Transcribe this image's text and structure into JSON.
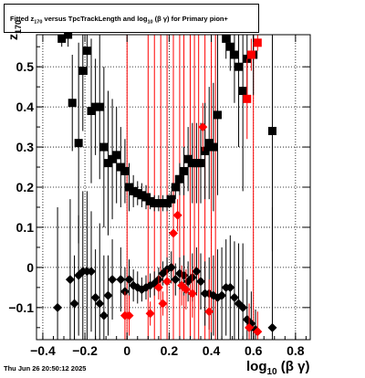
{
  "title": {
    "part1": "Fitted  z",
    "sub1": "170",
    "part2": "  versus TpcTrackLength and log",
    "sub2": "10",
    "part3": " (β  γ) for Primary pion+"
  },
  "footer": "Thu Jun 26 20:50:12 2025",
  "xlabel": {
    "main": "log",
    "sub": "10",
    "rest": " (β γ)"
  },
  "ylabel": {
    "main": "z",
    "sub": "170"
  },
  "chart_data": {
    "type": "scatter",
    "xlim": [
      -0.43,
      0.87
    ],
    "ylim": [
      -0.18,
      0.58
    ],
    "xticks": [
      -0.4,
      -0.2,
      0,
      0.2,
      0.4,
      0.6,
      0.8
    ],
    "xtick_labels": [
      "−0.4",
      "−0.2",
      "0",
      "0.2",
      "0.4",
      "0.6",
      "0.8"
    ],
    "yticks": [
      -0.1,
      0,
      0.1,
      0.2,
      0.3,
      0.4,
      0.5
    ],
    "ytick_labels": [
      "−0.1",
      "0",
      "0.1",
      "0.2",
      "0.3",
      "0.4",
      "0.5"
    ],
    "grid": true,
    "colors": {
      "black": "#000000",
      "red": "#ff0000"
    },
    "red_vertical_lines": [
      0.0,
      0.1,
      0.13,
      0.16,
      0.19,
      0.22,
      0.25,
      0.27,
      0.3,
      0.32,
      0.34,
      0.37,
      0.4,
      0.42,
      0.6
    ],
    "series": [
      {
        "marker": "square",
        "color": "#000000",
        "points": [
          {
            "x": -0.31,
            "y": 0.57,
            "err": 0.02
          },
          {
            "x": -0.28,
            "y": 0.58,
            "err": 0.03
          },
          {
            "x": -0.26,
            "y": 0.41,
            "err": 0.12
          },
          {
            "x": -0.23,
            "y": 0.31,
            "err": 0.25
          },
          {
            "x": -0.21,
            "y": 0.49,
            "err": 0.15
          },
          {
            "x": -0.19,
            "y": 0.54,
            "err": 0.06
          },
          {
            "x": -0.17,
            "y": 0.39,
            "err": 0.18
          },
          {
            "x": -0.15,
            "y": 0.4,
            "err": 0.12
          },
          {
            "x": -0.13,
            "y": 0.4,
            "err": 0.18
          },
          {
            "x": -0.11,
            "y": 0.3,
            "err": 0.2
          },
          {
            "x": -0.09,
            "y": 0.26,
            "err": 0.18
          },
          {
            "x": -0.07,
            "y": 0.27,
            "err": 0.15
          },
          {
            "x": -0.05,
            "y": 0.28,
            "err": 0.12
          },
          {
            "x": -0.03,
            "y": 0.25,
            "err": 0.1
          },
          {
            "x": -0.01,
            "y": 0.24,
            "err": 0.08
          },
          {
            "x": 0.01,
            "y": 0.2,
            "err": 0.06
          },
          {
            "x": 0.03,
            "y": 0.19,
            "err": 0.04
          },
          {
            "x": 0.05,
            "y": 0.185,
            "err": 0.03
          },
          {
            "x": 0.07,
            "y": 0.18,
            "err": 0.03
          },
          {
            "x": 0.09,
            "y": 0.175,
            "err": 0.03
          },
          {
            "x": 0.11,
            "y": 0.165,
            "err": 0.02
          },
          {
            "x": 0.13,
            "y": 0.16,
            "err": 0.02
          },
          {
            "x": 0.15,
            "y": 0.16,
            "err": 0.02
          },
          {
            "x": 0.17,
            "y": 0.16,
            "err": 0.02
          },
          {
            "x": 0.19,
            "y": 0.16,
            "err": 0.02
          },
          {
            "x": 0.21,
            "y": 0.17,
            "err": 0.02
          },
          {
            "x": 0.23,
            "y": 0.2,
            "err": 0.03
          },
          {
            "x": 0.25,
            "y": 0.22,
            "err": 0.04
          },
          {
            "x": 0.27,
            "y": 0.24,
            "err": 0.06
          },
          {
            "x": 0.29,
            "y": 0.27,
            "err": 0.08
          },
          {
            "x": 0.31,
            "y": 0.26,
            "err": 0.1
          },
          {
            "x": 0.33,
            "y": 0.26,
            "err": 0.1
          },
          {
            "x": 0.35,
            "y": 0.26,
            "err": 0.1
          },
          {
            "x": 0.37,
            "y": 0.29,
            "err": 0.12
          },
          {
            "x": 0.39,
            "y": 0.31,
            "err": 0.14
          },
          {
            "x": 0.41,
            "y": 0.3,
            "err": 0.16
          },
          {
            "x": 0.43,
            "y": 0.38,
            "err": 0.2
          },
          {
            "x": 0.47,
            "y": 0.57,
            "err": 0.05
          },
          {
            "x": 0.49,
            "y": 0.55,
            "err": 0.06
          },
          {
            "x": 0.51,
            "y": 0.53,
            "err": 0.12
          },
          {
            "x": 0.53,
            "y": 0.5,
            "err": 0.2
          },
          {
            "x": 0.55,
            "y": 0.44,
            "err": 0.25
          },
          {
            "x": 0.57,
            "y": 0.52,
            "err": 0.1
          },
          {
            "x": 0.6,
            "y": 0.53,
            "err": 0.1
          },
          {
            "x": 0.69,
            "y": 0.34,
            "err": 0.3
          }
        ]
      },
      {
        "marker": "square",
        "color": "#ff0000",
        "points": [
          {
            "x": 0.57,
            "y": 0.42,
            "err": 0.1
          },
          {
            "x": 0.59,
            "y": 0.53,
            "err": 0.04
          },
          {
            "x": 0.62,
            "y": 0.56,
            "err": 0.02
          }
        ]
      },
      {
        "marker": "diamond",
        "color": "#000000",
        "points": [
          {
            "x": -0.33,
            "y": -0.1,
            "err": 0.25
          },
          {
            "x": -0.27,
            "y": -0.03,
            "err": 0.2
          },
          {
            "x": -0.25,
            "y": -0.09,
            "err": 0.12
          },
          {
            "x": -0.23,
            "y": -0.02,
            "err": 0.15
          },
          {
            "x": -0.21,
            "y": -0.01,
            "err": 0.2
          },
          {
            "x": -0.19,
            "y": -0.01,
            "err": 0.2
          },
          {
            "x": -0.17,
            "y": -0.01,
            "err": 0.15
          },
          {
            "x": -0.15,
            "y": -0.075,
            "err": 0.12
          },
          {
            "x": -0.13,
            "y": -0.09,
            "err": 0.2
          },
          {
            "x": -0.11,
            "y": -0.12,
            "err": 0.15
          },
          {
            "x": -0.09,
            "y": -0.07,
            "err": 0.1
          },
          {
            "x": -0.07,
            "y": -0.03,
            "err": 0.1
          },
          {
            "x": -0.03,
            "y": -0.03,
            "err": 0.08
          },
          {
            "x": -0.01,
            "y": -0.06,
            "err": 0.06
          },
          {
            "x": 0.01,
            "y": -0.03,
            "err": 0.05
          },
          {
            "x": 0.03,
            "y": -0.045,
            "err": 0.04
          },
          {
            "x": 0.05,
            "y": -0.05,
            "err": 0.04
          },
          {
            "x": 0.07,
            "y": -0.055,
            "err": 0.03
          },
          {
            "x": 0.09,
            "y": -0.05,
            "err": 0.03
          },
          {
            "x": 0.11,
            "y": -0.045,
            "err": 0.03
          },
          {
            "x": 0.13,
            "y": -0.04,
            "err": 0.03
          },
          {
            "x": 0.15,
            "y": -0.03,
            "err": 0.03
          },
          {
            "x": 0.17,
            "y": -0.015,
            "err": 0.03
          },
          {
            "x": 0.19,
            "y": -0.005,
            "err": 0.03
          },
          {
            "x": 0.21,
            "y": 0.0,
            "err": 0.04
          },
          {
            "x": 0.23,
            "y": -0.03,
            "err": 0.04
          },
          {
            "x": 0.25,
            "y": -0.015,
            "err": 0.04
          },
          {
            "x": 0.27,
            "y": -0.02,
            "err": 0.05
          },
          {
            "x": 0.29,
            "y": -0.035,
            "err": 0.05
          },
          {
            "x": 0.31,
            "y": -0.025,
            "err": 0.06
          },
          {
            "x": 0.33,
            "y": -0.01,
            "err": 0.06
          },
          {
            "x": 0.35,
            "y": -0.035,
            "err": 0.07
          },
          {
            "x": 0.37,
            "y": -0.065,
            "err": 0.08
          },
          {
            "x": 0.39,
            "y": -0.065,
            "err": 0.09
          },
          {
            "x": 0.41,
            "y": -0.07,
            "err": 0.1
          },
          {
            "x": 0.43,
            "y": -0.075,
            "err": 0.12
          },
          {
            "x": 0.45,
            "y": -0.07,
            "err": 0.12
          },
          {
            "x": 0.47,
            "y": -0.05,
            "err": 0.12
          },
          {
            "x": 0.49,
            "y": -0.05,
            "err": 0.13
          },
          {
            "x": 0.51,
            "y": -0.075,
            "err": 0.14
          },
          {
            "x": 0.53,
            "y": -0.09,
            "err": 0.15
          },
          {
            "x": 0.55,
            "y": -0.1,
            "err": 0.16
          },
          {
            "x": 0.57,
            "y": -0.13,
            "err": 0.1
          },
          {
            "x": 0.59,
            "y": -0.14,
            "err": 0.08
          },
          {
            "x": 0.61,
            "y": -0.155,
            "err": 0.05
          },
          {
            "x": 0.69,
            "y": -0.15,
            "err": 0.3
          }
        ]
      },
      {
        "marker": "diamond",
        "color": "#ff0000",
        "points": [
          {
            "x": -0.01,
            "y": -0.12,
            "err": 0.06
          },
          {
            "x": 0.01,
            "y": -0.12,
            "err": 0.05
          },
          {
            "x": 0.11,
            "y": -0.115,
            "err": 0.03
          },
          {
            "x": 0.15,
            "y": -0.05,
            "err": 0.03
          },
          {
            "x": 0.17,
            "y": -0.09,
            "err": 0.03
          },
          {
            "x": 0.19,
            "y": -0.035,
            "err": 0.03
          },
          {
            "x": 0.22,
            "y": 0.085,
            "err": 0.04
          },
          {
            "x": 0.24,
            "y": 0.13,
            "err": 0.04
          },
          {
            "x": 0.26,
            "y": -0.045,
            "err": 0.05
          },
          {
            "x": 0.28,
            "y": -0.055,
            "err": 0.05
          },
          {
            "x": 0.31,
            "y": -0.065,
            "err": 0.06
          },
          {
            "x": 0.36,
            "y": 0.35,
            "err": 0.06
          },
          {
            "x": 0.39,
            "y": -0.11,
            "err": 0.08
          },
          {
            "x": 0.58,
            "y": -0.15,
            "err": 0.06
          },
          {
            "x": 0.62,
            "y": -0.16,
            "err": 0.05
          }
        ]
      }
    ]
  }
}
